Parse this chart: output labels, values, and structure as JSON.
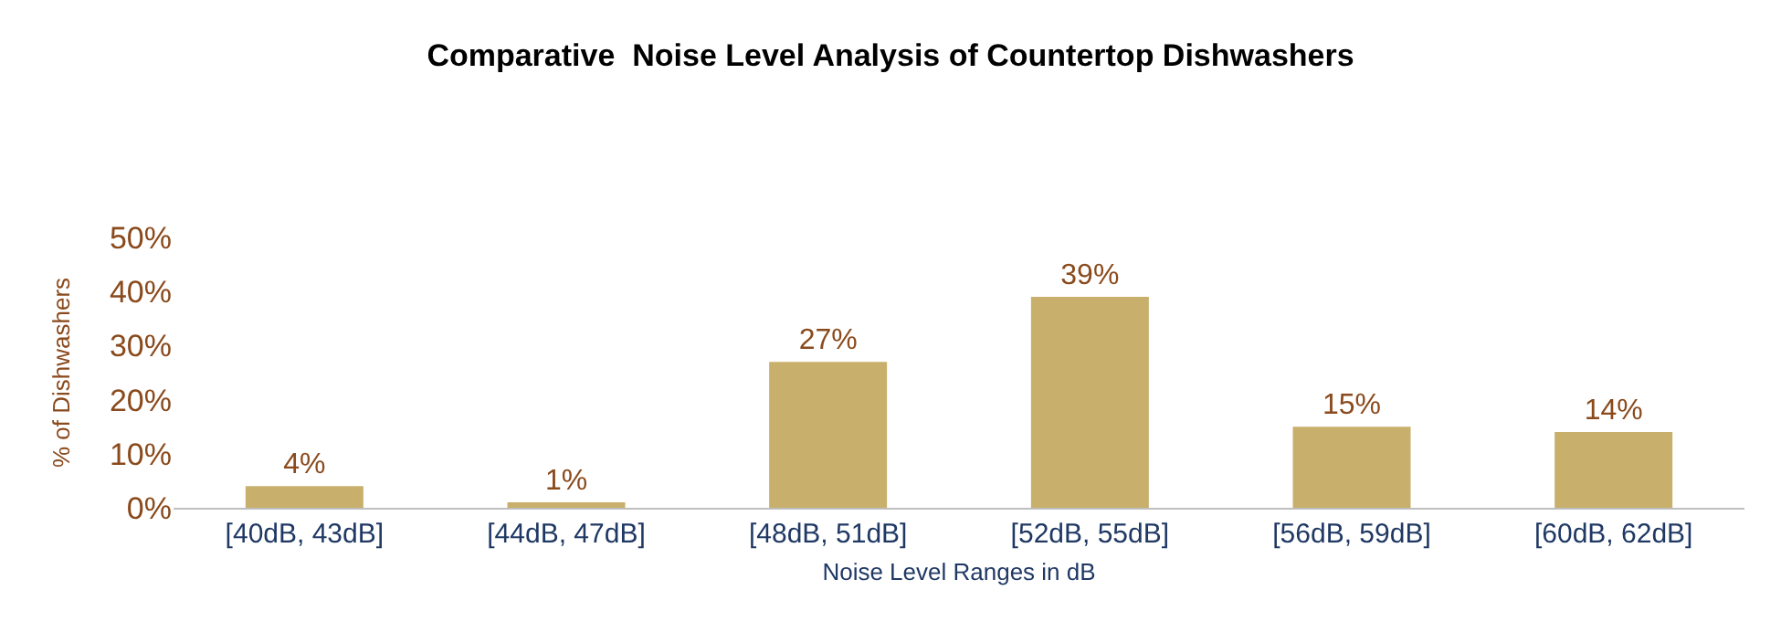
{
  "chart_data": {
    "type": "bar",
    "title": "Comparative  Noise Level Analysis of Countertop Dishwashers",
    "xlabel": "Noise Level Ranges in dB",
    "ylabel": "% of Dishwashers",
    "categories": [
      "[40dB, 43dB]",
      "[44dB, 47dB]",
      "[48dB, 51dB]",
      "[52dB, 55dB]",
      "[56dB, 59dB]",
      "[60dB, 62dB]"
    ],
    "values": [
      4,
      1,
      27,
      39,
      15,
      14
    ],
    "value_labels": [
      "4%",
      "1%",
      "27%",
      "39%",
      "15%",
      "14%"
    ],
    "color": "#c8b06c",
    "ylim": [
      0,
      50
    ],
    "yticks": [
      {
        "value": 0,
        "label": "0%"
      },
      {
        "value": 10,
        "label": "10%"
      },
      {
        "value": 20,
        "label": "20%"
      },
      {
        "value": 30,
        "label": "30%"
      },
      {
        "value": 40,
        "label": "40%"
      },
      {
        "value": 50,
        "label": "50%"
      }
    ]
  }
}
